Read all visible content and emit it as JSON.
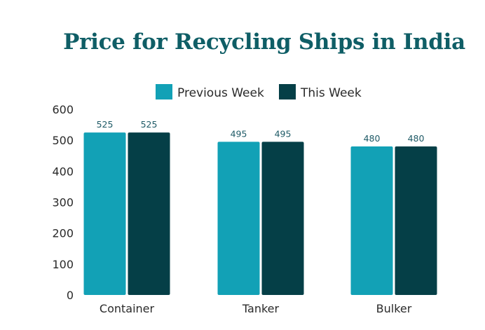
{
  "chart_data": {
    "type": "bar",
    "title": "Price for Recycling Ships in India",
    "xlabel": "",
    "ylabel": "",
    "categories": [
      "Container",
      "Tanker",
      "Bulker"
    ],
    "series": [
      {
        "name": "Previous Week",
        "values": [
          525,
          495,
          480
        ],
        "color": "#12a1b6"
      },
      {
        "name": "This Week",
        "values": [
          525,
          495,
          480
        ],
        "color": "#053f47"
      }
    ],
    "ylim": [
      0,
      600
    ],
    "yticks": [
      "0",
      "100",
      "200",
      "300",
      "400",
      "500",
      "600"
    ],
    "data_labels": [
      [
        "525",
        "495",
        "480"
      ],
      [
        "525",
        "495",
        "480"
      ]
    ],
    "grid": false,
    "legend_position": "top"
  }
}
